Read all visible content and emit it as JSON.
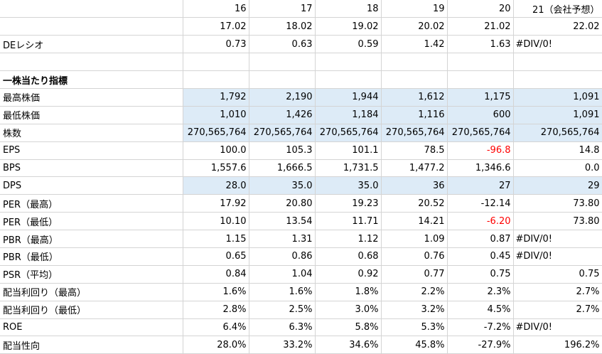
{
  "rows": [
    {
      "label": "",
      "cells": [
        "16",
        "17",
        "18",
        "19",
        "20",
        "21（会社予想）"
      ]
    },
    {
      "label": "",
      "cells": [
        "17.02",
        "18.02",
        "19.02",
        "20.02",
        "21.02",
        "22.02"
      ]
    },
    {
      "label": "DEレシオ",
      "cells": [
        "0.73",
        "0.63",
        "0.59",
        "1.42",
        "1.63",
        "#DIV/0!"
      ],
      "left_last": true
    },
    {
      "label": "",
      "cells": [
        "",
        "",
        "",
        "",
        "",
        ""
      ]
    },
    {
      "label": "一株当たり指標",
      "cells": [
        "",
        "",
        "",
        "",
        "",
        ""
      ],
      "bold": true
    },
    {
      "label": "最高株価",
      "cells": [
        "1,792",
        "2,190",
        "1,944",
        "1,612",
        "1,175",
        "1,091"
      ],
      "blue": true
    },
    {
      "label": "最低株価",
      "cells": [
        "1,010",
        "1,426",
        "1,184",
        "1,116",
        "600",
        "1,091"
      ],
      "blue": true
    },
    {
      "label": "株数",
      "cells": [
        "270,565,764",
        "270,565,764",
        "270,565,764",
        "270,565,764",
        "270,565,764",
        "270,565,764"
      ],
      "blue": true
    },
    {
      "label": "EPS",
      "cells": [
        "100.0",
        "105.3",
        "101.1",
        "78.5",
        "-96.8",
        "14.8"
      ],
      "neg": [
        4
      ]
    },
    {
      "label": "BPS",
      "cells": [
        "1,557.6",
        "1,666.5",
        "1,731.5",
        "1,477.2",
        "1,346.6",
        "0.0"
      ]
    },
    {
      "label": "DPS",
      "cells": [
        "28.0",
        "35.0",
        "35.0",
        "36",
        "27",
        "29"
      ],
      "blue": true
    },
    {
      "label": "PER（最高）",
      "cells": [
        "17.92",
        "20.80",
        "19.23",
        "20.52",
        "-12.14",
        "73.80"
      ]
    },
    {
      "label": "PER（最低）",
      "cells": [
        "10.10",
        "13.54",
        "11.71",
        "14.21",
        "-6.20",
        "73.80"
      ],
      "neg": [
        4
      ]
    },
    {
      "label": "PBR（最高）",
      "cells": [
        "1.15",
        "1.31",
        "1.12",
        "1.09",
        "0.87",
        "#DIV/0!"
      ],
      "left_last": true
    },
    {
      "label": "PBR（最低）",
      "cells": [
        "0.65",
        "0.86",
        "0.68",
        "0.76",
        "0.45",
        "#DIV/0!"
      ],
      "left_last": true
    },
    {
      "label": "PSR（平均）",
      "cells": [
        "0.84",
        "1.04",
        "0.92",
        "0.77",
        "0.75",
        "0.75"
      ]
    },
    {
      "label": "配当利回り（最高）",
      "cells": [
        "1.6%",
        "1.6%",
        "1.8%",
        "2.2%",
        "2.3%",
        "2.7%"
      ]
    },
    {
      "label": "配当利回り（最低）",
      "cells": [
        "2.8%",
        "2.5%",
        "3.0%",
        "3.2%",
        "4.5%",
        "2.7%"
      ]
    },
    {
      "label": "ROE",
      "cells": [
        "6.4%",
        "6.3%",
        "5.8%",
        "5.3%",
        "-7.2%",
        "#DIV/0!"
      ],
      "left_last": true
    },
    {
      "label": "配当性向",
      "cells": [
        "28.0%",
        "33.2%",
        "34.6%",
        "45.8%",
        "-27.9%",
        "196.2%"
      ]
    }
  ]
}
